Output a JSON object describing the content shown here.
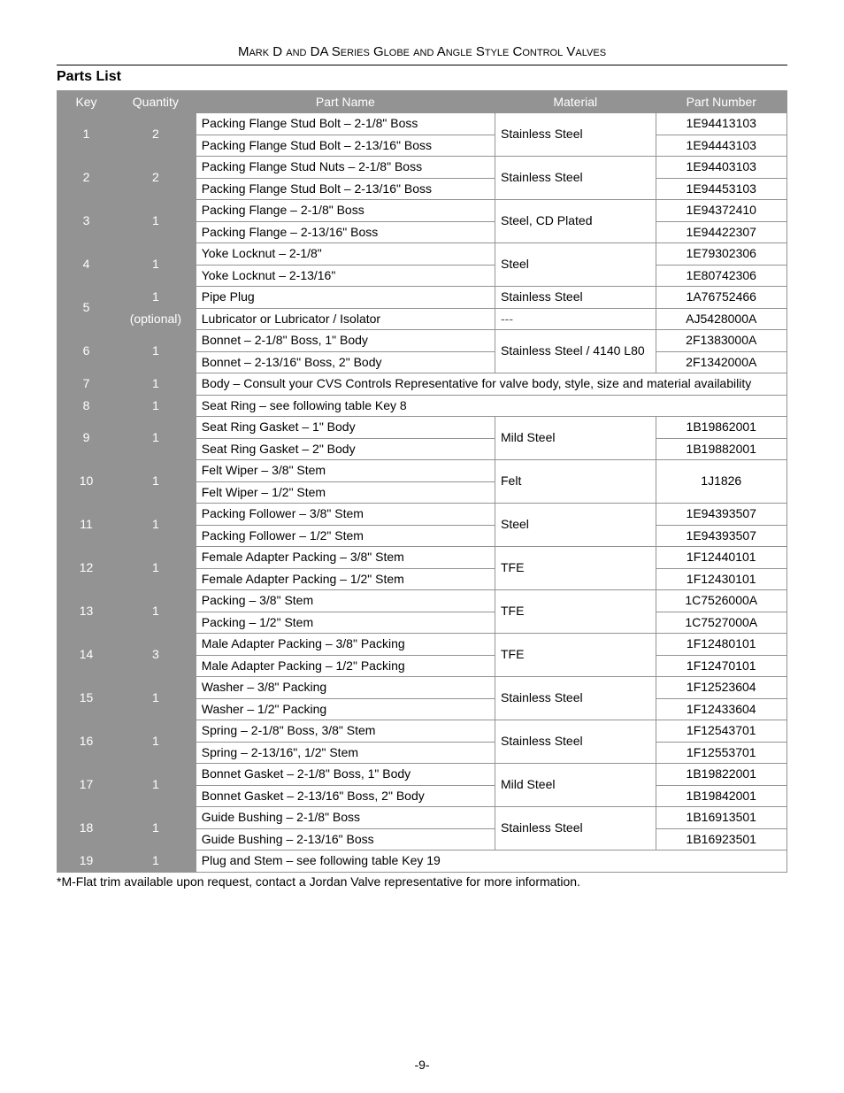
{
  "doc": {
    "title": "Mark D and DA Series Globe and Angle Style Control Valves",
    "section": "Parts List",
    "footnote": "*M-Flat trim available upon request, contact a Jordan Valve representative for more information.",
    "pagenum": "-9-"
  },
  "columns": {
    "key": "Key",
    "qty": "Quantity",
    "name": "Part Name",
    "mat": "Material",
    "pn": "Part Number"
  },
  "rows": [
    {
      "key": "1",
      "qty": "2",
      "qty_rowspan": 2,
      "name": "Packing Flange Stud Bolt – 2-1/8\" Boss",
      "mat": "Stainless Steel",
      "mat_rowspan": 2,
      "pn": "1E94413103"
    },
    {
      "name": "Packing Flange Stud Bolt – 2-13/16\" Boss",
      "pn": "1E94443103"
    },
    {
      "key": "2",
      "qty": "2",
      "qty_rowspan": 2,
      "name": "Packing Flange Stud Nuts – 2-1/8\" Boss",
      "mat": "Stainless Steel",
      "mat_rowspan": 2,
      "pn": "1E94403103"
    },
    {
      "name": "Packing Flange Stud Bolt – 2-13/16\" Boss",
      "pn": "1E94453103"
    },
    {
      "key": "3",
      "qty": "1",
      "qty_rowspan": 2,
      "name": "Packing Flange – 2-1/8\" Boss",
      "mat": "Steel, CD Plated",
      "mat_rowspan": 2,
      "pn": "1E94372410"
    },
    {
      "name": "Packing Flange – 2-13/16\" Boss",
      "pn": "1E94422307"
    },
    {
      "key": "4",
      "qty": "1",
      "qty_rowspan": 2,
      "name": "Yoke Locknut – 2-1/8\"",
      "mat": "Steel",
      "mat_rowspan": 2,
      "pn": "1E79302306"
    },
    {
      "name": "Yoke Locknut – 2-13/16\"",
      "pn": "1E80742306"
    },
    {
      "key": "5",
      "qty": "1",
      "qty2": "(optional)",
      "name": "Pipe Plug",
      "mat": "Stainless Steel",
      "pn": "1A76752466"
    },
    {
      "name": "Lubricator or Lubricator / Isolator",
      "mat": "---",
      "mat_class": "dash",
      "pn": "AJ5428000A"
    },
    {
      "key": "6",
      "qty": "1",
      "qty_rowspan": 2,
      "name": "Bonnet – 2-1/8\" Boss, 1\" Body",
      "mat": "Stainless Steel / 4140 L80",
      "mat_rowspan": 2,
      "pn": "2F1383000A"
    },
    {
      "name": "Bonnet – 2-13/16\" Boss, 2\" Body",
      "pn": "2F1342000A"
    },
    {
      "key": "7",
      "qty": "1",
      "full": "Body – Consult your CVS Controls Representative for valve body, style, size and material availability"
    },
    {
      "key": "8",
      "qty": "1",
      "full": "Seat Ring – see following table Key 8"
    },
    {
      "key": "9",
      "qty": "1",
      "qty_rowspan": 2,
      "name": "Seat Ring Gasket – 1\" Body",
      "mat": "Mild Steel",
      "mat_rowspan": 2,
      "pn": "1B19862001"
    },
    {
      "name": "Seat Ring Gasket – 2\" Body",
      "pn": "1B19882001"
    },
    {
      "key": "10",
      "qty": "1",
      "qty_rowspan": 2,
      "name": "Felt Wiper – 3/8\" Stem",
      "mat": "Felt",
      "mat_rowspan": 2,
      "pn": "1J1826",
      "pn_rowspan": 2
    },
    {
      "name": "Felt Wiper – 1/2\" Stem"
    },
    {
      "key": "11",
      "qty": "1",
      "qty_rowspan": 2,
      "name": "Packing Follower – 3/8\" Stem",
      "mat": "Steel",
      "mat_rowspan": 2,
      "pn": "1E94393507"
    },
    {
      "name": "Packing Follower – 1/2\" Stem",
      "pn": "1E94393507"
    },
    {
      "key": "12",
      "qty": "1",
      "qty_rowspan": 2,
      "name": "Female Adapter Packing – 3/8\" Stem",
      "mat": "TFE",
      "mat_rowspan": 2,
      "pn": "1F12440101"
    },
    {
      "name": "Female Adapter Packing – 1/2\" Stem",
      "pn": "1F12430101"
    },
    {
      "key": "13",
      "qty": "1",
      "qty_rowspan": 2,
      "name": "Packing – 3/8\" Stem",
      "mat": "TFE",
      "mat_rowspan": 2,
      "pn": "1C7526000A"
    },
    {
      "name": "Packing – 1/2\" Stem",
      "pn": "1C7527000A"
    },
    {
      "key": "14",
      "qty": "3",
      "qty_rowspan": 2,
      "name": "Male Adapter Packing – 3/8\" Packing",
      "mat": "TFE",
      "mat_rowspan": 2,
      "pn": "1F12480101"
    },
    {
      "name": "Male Adapter Packing – 1/2\" Packing",
      "pn": "1F12470101"
    },
    {
      "key": "15",
      "qty": "1",
      "qty_rowspan": 2,
      "name": "Washer – 3/8\" Packing",
      "mat": "Stainless Steel",
      "mat_rowspan": 2,
      "pn": "1F12523604"
    },
    {
      "name": "Washer – 1/2\" Packing",
      "pn": "1F12433604"
    },
    {
      "key": "16",
      "qty": "1",
      "qty_rowspan": 2,
      "name": "Spring – 2-1/8\" Boss, 3/8\" Stem",
      "mat": "Stainless Steel",
      "mat_rowspan": 2,
      "pn": "1F12543701"
    },
    {
      "name": "Spring – 2-13/16\", 1/2\" Stem",
      "pn": "1F12553701"
    },
    {
      "key": "17",
      "qty": "1",
      "qty_rowspan": 2,
      "name": "Bonnet Gasket – 2-1/8\" Boss, 1\" Body",
      "mat": "Mild Steel",
      "mat_rowspan": 2,
      "pn": "1B19822001"
    },
    {
      "name": "Bonnet Gasket – 2-13/16\" Boss, 2\" Body",
      "pn": "1B19842001"
    },
    {
      "key": "18",
      "qty": "1",
      "qty_rowspan": 2,
      "name": "Guide Bushing – 2-1/8\" Boss",
      "mat": "Stainless Steel",
      "mat_rowspan": 2,
      "pn": "1B16913501"
    },
    {
      "name": "Guide Bushing – 2-13/16\" Boss",
      "pn": "1B16923501"
    },
    {
      "key": "19",
      "qty": "1",
      "full": "Plug and Stem – see following table Key 19"
    }
  ],
  "style": {
    "header_bg": "#939393",
    "header_fg": "#ffffff",
    "border_color": "#939393",
    "body_font_size": 14,
    "title_font_size": 15,
    "section_font_size": 16,
    "col_widths_pct": {
      "key": 8,
      "qty": 11,
      "name": 41,
      "mat": 22,
      "pn": 18
    }
  }
}
